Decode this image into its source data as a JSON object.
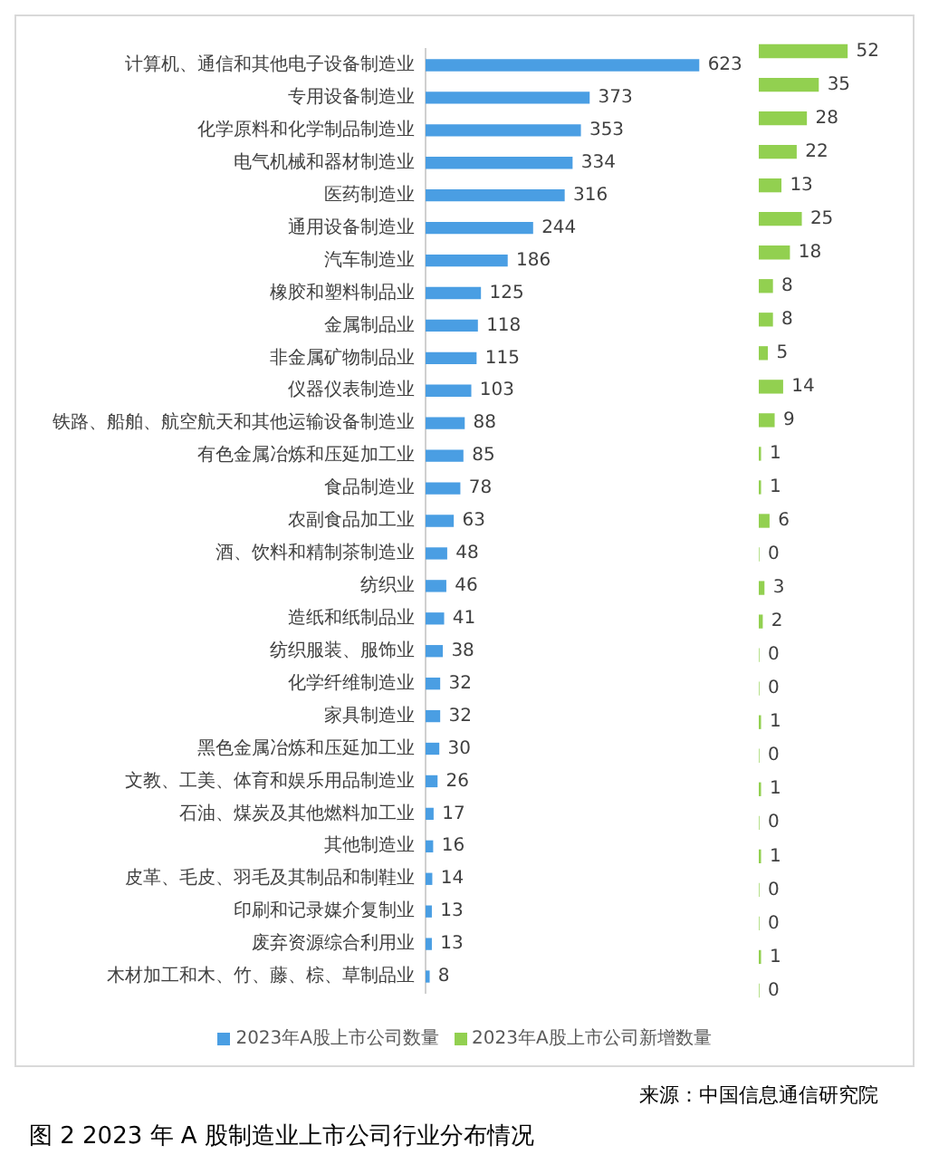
{
  "chart_data": [
    {
      "type": "bar",
      "orientation": "horizontal",
      "title": "图 2 2023 年 A 股制造业上市公司行业分布情况",
      "annotations": [
        "来源：中国信息通信研究院"
      ],
      "legend": "bottom",
      "grid": false,
      "data_labels": true,
      "categories": [
        "计算机、通信和其他电子设备制造业",
        "专用设备制造业",
        "化学原料和化学制品制造业",
        "电气机械和器材制造业",
        "医药制造业",
        "通用设备制造业",
        "汽车制造业",
        "橡胶和塑料制品业",
        "金属制品业",
        "非金属矿物制品业",
        "仪器仪表制造业",
        "铁路、船舶、航空航天和其他运输设备制造业",
        "有色金属冶炼和压延加工业",
        "食品制造业",
        "农副食品加工业",
        "酒、饮料和精制茶制造业",
        "纺织业",
        "造纸和纸制品业",
        "纺织服装、服饰业",
        "化学纤维制造业",
        "家具制造业",
        "黑色金属冶炼和压延加工业",
        "文教、工美、体育和娱乐用品制造业",
        "石油、煤炭及其他燃料加工业",
        "其他制造业",
        "皮革、毛皮、羽毛及其制品和制鞋业",
        "印刷和记录媒介复制业",
        "废弃资源综合利用业",
        "木材加工和木、竹、藤、棕、草制品业"
      ],
      "series": [
        {
          "name": "2023年A股上市公司数量",
          "color": "#4a9ee3",
          "values": [
            623,
            373,
            353,
            334,
            316,
            244,
            186,
            125,
            118,
            115,
            103,
            88,
            85,
            78,
            63,
            48,
            46,
            41,
            38,
            32,
            32,
            30,
            26,
            17,
            16,
            14,
            13,
            13,
            8
          ]
        }
      ]
    },
    {
      "type": "bar",
      "orientation": "horizontal",
      "legend": "bottom",
      "grid": false,
      "data_labels": true,
      "tick_labels": false,
      "categories": [
        null,
        null,
        null,
        null,
        null,
        null,
        null,
        null,
        null,
        null,
        null,
        null,
        null,
        null,
        null,
        null,
        null,
        null,
        null,
        null,
        null,
        null,
        null,
        null,
        null,
        null,
        null,
        null,
        null
      ],
      "series": [
        {
          "name": "2023年A股上市公司新增数量",
          "color": "#92d050",
          "values": [
            52,
            35,
            28,
            22,
            13,
            25,
            18,
            8,
            8,
            5,
            14,
            9,
            1,
            1,
            6,
            0,
            3,
            2,
            0,
            0,
            1,
            0,
            1,
            0,
            1,
            0,
            0,
            1,
            0
          ]
        }
      ]
    }
  ]
}
